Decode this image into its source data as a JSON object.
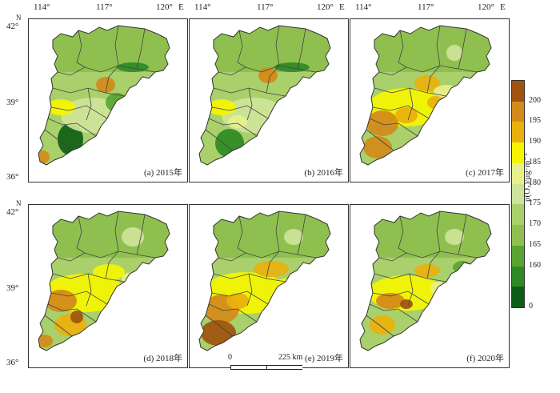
{
  "axes": {
    "lon_ticks": [
      "114°",
      "117°",
      "120°"
    ],
    "lon_suffix": "E",
    "lat_ticks": [
      "42°",
      "39°",
      "36°"
    ],
    "north_label": "N"
  },
  "panels": [
    {
      "label": "(a) 2015年",
      "theme": "2015"
    },
    {
      "label": "(b) 2016年",
      "theme": "2016"
    },
    {
      "label": "(c) 2017年",
      "theme": "2017"
    },
    {
      "label": "(d) 2018年",
      "theme": "2018"
    },
    {
      "label": "(e) 2019年",
      "theme": "2019"
    },
    {
      "label": "(f) 2020年",
      "theme": "2020"
    }
  ],
  "legend": {
    "title": "ρ(O₃)/μg·m⁻³",
    "ticks": [
      "200",
      "195",
      "190",
      "185",
      "180",
      "175",
      "170",
      "165",
      "160",
      "0"
    ],
    "colors": [
      "#a0520f",
      "#d48a1a",
      "#eab00d",
      "#f5f500",
      "#e8f08c",
      "#cfe49a",
      "#a9d06a",
      "#8fc04f",
      "#5aa532",
      "#2e8a25",
      "#0f5e17"
    ]
  },
  "scalebar": {
    "start": "0",
    "end": "225 km"
  }
}
